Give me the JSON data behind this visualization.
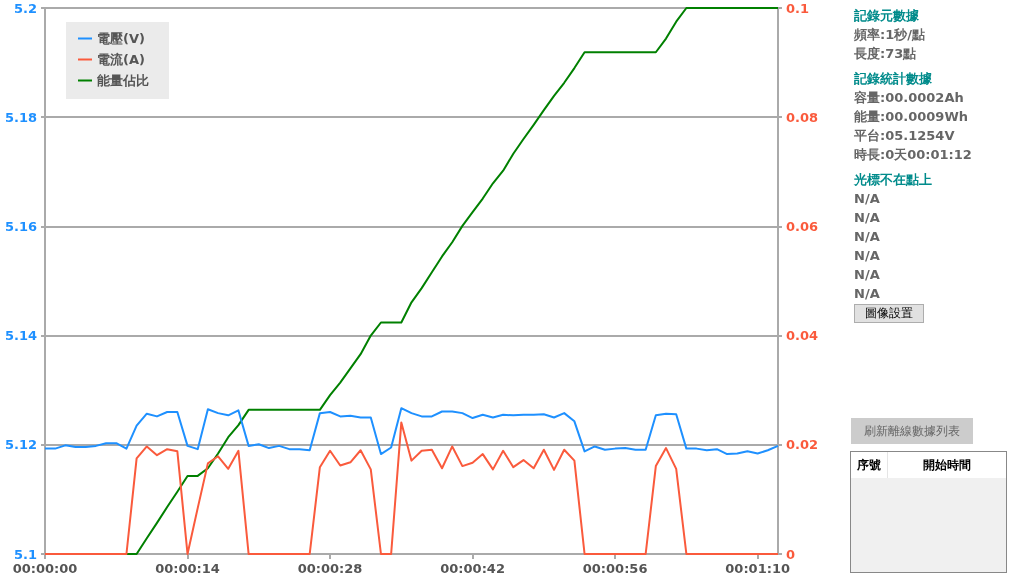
{
  "chart_data": {
    "type": "line",
    "categories": [
      "00:00:00",
      null,
      null,
      null,
      null,
      null,
      null,
      null,
      null,
      null,
      null,
      null,
      null,
      null,
      "00:00:14",
      null,
      null,
      null,
      null,
      null,
      null,
      null,
      null,
      null,
      null,
      null,
      null,
      null,
      "00:00:28",
      null,
      null,
      null,
      null,
      null,
      null,
      null,
      null,
      null,
      null,
      null,
      null,
      null,
      "00:00:42",
      null,
      null,
      null,
      null,
      null,
      null,
      null,
      null,
      null,
      null,
      null,
      null,
      null,
      "00:00:56",
      null,
      null,
      null,
      null,
      null,
      null,
      null,
      null,
      null,
      null,
      null,
      null,
      null,
      "00:01:10",
      null,
      null
    ],
    "series": [
      {
        "name": "電壓(V)",
        "color": "#1e90ff",
        "values": [
          5.1193,
          5.1193,
          5.1199,
          5.1196,
          5.1196,
          5.1198,
          5.1203,
          5.1203,
          5.1193,
          5.1235,
          5.1257,
          5.1252,
          5.126,
          5.126,
          5.1198,
          5.1192,
          5.1265,
          5.1258,
          5.1254,
          5.1263,
          5.1198,
          5.1201,
          5.1194,
          5.1198,
          5.1192,
          5.1192,
          5.119,
          5.1258,
          5.126,
          5.1252,
          5.1253,
          5.125,
          5.125,
          5.1183,
          5.1195,
          5.1267,
          5.1258,
          5.1252,
          5.1252,
          5.1261,
          5.1261,
          5.1258,
          5.1249,
          5.1255,
          5.125,
          5.1255,
          5.1254,
          5.1255,
          5.1255,
          5.1256,
          5.125,
          5.1258,
          5.1243,
          5.1188,
          5.1197,
          5.1191,
          5.1193,
          5.1194,
          5.1191,
          5.1191,
          5.1254,
          5.1257,
          5.1256,
          5.1193,
          5.1193,
          5.119,
          5.1192,
          5.1183,
          5.1184,
          5.1188,
          5.1184,
          5.119,
          5.1198
        ]
      },
      {
        "name": "電流(A)",
        "color": "#fa5a3c",
        "axis": "y2",
        "values": [
          0,
          0,
          0,
          0,
          0,
          0,
          0,
          0,
          0,
          0.0175,
          0.0197,
          0.0181,
          0.0192,
          0.0188,
          0,
          0.0084,
          0.0166,
          0.0179,
          0.0156,
          0.0189,
          0,
          0,
          0,
          0,
          0,
          0,
          0,
          0.0159,
          0.0189,
          0.0162,
          0.0168,
          0.019,
          0.0155,
          0,
          0,
          0.0241,
          0.0171,
          0.0189,
          0.0191,
          0.0157,
          0.0197,
          0.0161,
          0.0167,
          0.0183,
          0.0155,
          0.0189,
          0.0159,
          0.0172,
          0.0157,
          0.0191,
          0.0154,
          0.0191,
          0.0171,
          0,
          0,
          0,
          0,
          0,
          0,
          0,
          0.0161,
          0.0194,
          0.0156,
          0,
          0,
          0,
          0,
          0,
          0,
          0,
          0,
          0,
          0
        ]
      },
      {
        "name": "能量佔比",
        "color": "#008000",
        "axis": "y2",
        "values": [
          null,
          null,
          null,
          null,
          null,
          null,
          null,
          null,
          0,
          0,
          0.0029,
          0.0057,
          0.0086,
          0.0114,
          0.0143,
          0.0143,
          0.0157,
          0.0184,
          0.0214,
          0.0236,
          0.0264,
          0.0264,
          0.0264,
          0.0264,
          0.0264,
          0.0264,
          0.0264,
          0.0264,
          0.0291,
          0.0314,
          0.034,
          0.0366,
          0.04,
          0.0424,
          0.0424,
          0.0424,
          0.0461,
          0.0487,
          0.0516,
          0.0545,
          0.0571,
          0.0601,
          0.0626,
          0.0651,
          0.0679,
          0.0702,
          0.0733,
          0.076,
          0.0786,
          0.0813,
          0.0839,
          0.0863,
          0.089,
          0.0919,
          0.0919,
          0.0919,
          0.0919,
          0.0919,
          0.0919,
          0.0919,
          0.0919,
          0.0944,
          0.0975,
          0.1,
          0.1,
          0.1,
          0.1,
          0.1,
          0.1,
          0.1,
          0.1,
          0.1,
          0.1
        ]
      }
    ],
    "ylim": [
      5.1,
      5.2
    ],
    "yticks": [
      5.1,
      5.12,
      5.14,
      5.16,
      5.18,
      5.2
    ],
    "y2lim": [
      0,
      0.1
    ],
    "y2ticks": [
      0,
      0.02,
      0.04,
      0.06,
      0.08,
      0.1
    ],
    "grid": "y",
    "legend": "top left",
    "marker": "none",
    "line_style": "solid",
    "annotations": [
      "記錄元數據",
      "頻率:1秒/點",
      "長度:73點",
      "記錄統計數據",
      "容量:00.0002Ah",
      "能量:00.0009Wh",
      "平台:05.1254V",
      "時長:0天00:01:12",
      "光標不在點上",
      "N/A",
      "N/A",
      "N/A",
      "N/A",
      "N/A",
      "N/A",
      "圖像設置",
      "刷新離線數據列表",
      "序號",
      "開始時間"
    ]
  }
}
